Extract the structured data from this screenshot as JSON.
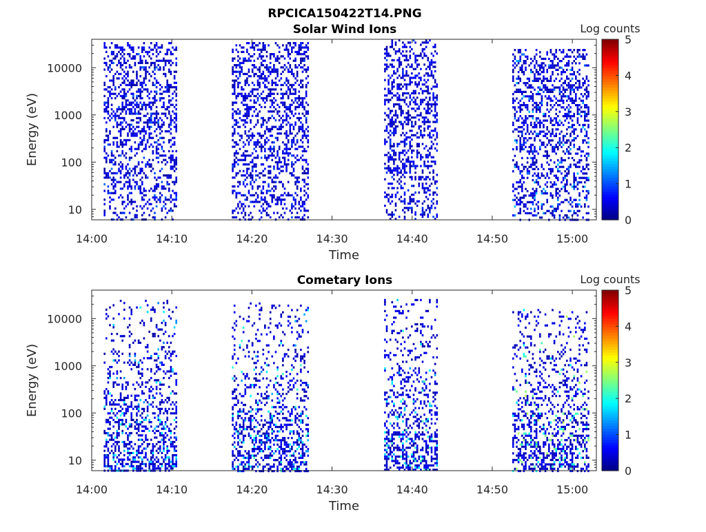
{
  "figure_title": "RPCICA150422T14.PNG",
  "colormap": [
    "#00007f",
    "#0000ff",
    "#007fff",
    "#00ffff",
    "#7fff7f",
    "#ffff00",
    "#ff7f00",
    "#ff0000",
    "#7f0000"
  ],
  "chart_data": [
    {
      "type": "heatmap",
      "title": "Solar Wind Ions",
      "xlabel": "Time",
      "ylabel": "Energy (eV)",
      "x_ticks": [
        "14:00",
        "14:10",
        "14:20",
        "14:30",
        "14:40",
        "14:50",
        "15:00"
      ],
      "x_range": [
        "14:00",
        "15:03"
      ],
      "y_scale": "log",
      "y_ticks": [
        "10",
        "100",
        "1000",
        "10000"
      ],
      "y_range": [
        6,
        40000
      ],
      "colorbar": {
        "label": "Log counts",
        "range": [
          0,
          5
        ],
        "ticks": [
          "0",
          "1",
          "2",
          "3",
          "4",
          "5"
        ]
      },
      "active_intervals": [
        {
          "start": "14:01.5",
          "end": "14:10.5",
          "energy_range": [
            6,
            35000
          ],
          "peak_log_counts": 1.2
        },
        {
          "start": "14:17.5",
          "end": "14:27",
          "energy_range": [
            6,
            35000
          ],
          "peak_log_counts": 1.0
        },
        {
          "start": "14:36.5",
          "end": "14:43",
          "energy_range": [
            6,
            40000
          ],
          "peak_log_counts": 1.0
        },
        {
          "start": "14:52.5",
          "end": "15:02",
          "energy_range": [
            6,
            25000
          ],
          "peak_log_counts": 1.6
        }
      ]
    },
    {
      "type": "heatmap",
      "title": "Cometary Ions",
      "xlabel": "Time",
      "ylabel": "Energy (eV)",
      "x_ticks": [
        "14:00",
        "14:10",
        "14:20",
        "14:30",
        "14:40",
        "14:50",
        "15:00"
      ],
      "x_range": [
        "14:00",
        "15:03"
      ],
      "y_scale": "log",
      "y_ticks": [
        "10",
        "100",
        "1000",
        "10000"
      ],
      "y_range": [
        6,
        40000
      ],
      "colorbar": {
        "label": "Log counts",
        "range": [
          0,
          5
        ],
        "ticks": [
          "0",
          "1",
          "2",
          "3",
          "4",
          "5"
        ]
      },
      "active_intervals": [
        {
          "start": "14:01.5",
          "end": "14:10.5",
          "energy_range": [
            6,
            25000
          ],
          "peak_log_counts": 2.0
        },
        {
          "start": "14:17.5",
          "end": "14:27",
          "energy_range": [
            6,
            22000
          ],
          "peak_log_counts": 2.2
        },
        {
          "start": "14:36.5",
          "end": "14:43",
          "energy_range": [
            6,
            26000
          ],
          "peak_log_counts": 2.3
        },
        {
          "start": "14:52.5",
          "end": "15:02",
          "energy_range": [
            6,
            16000
          ],
          "peak_log_counts": 2.8
        }
      ]
    }
  ]
}
